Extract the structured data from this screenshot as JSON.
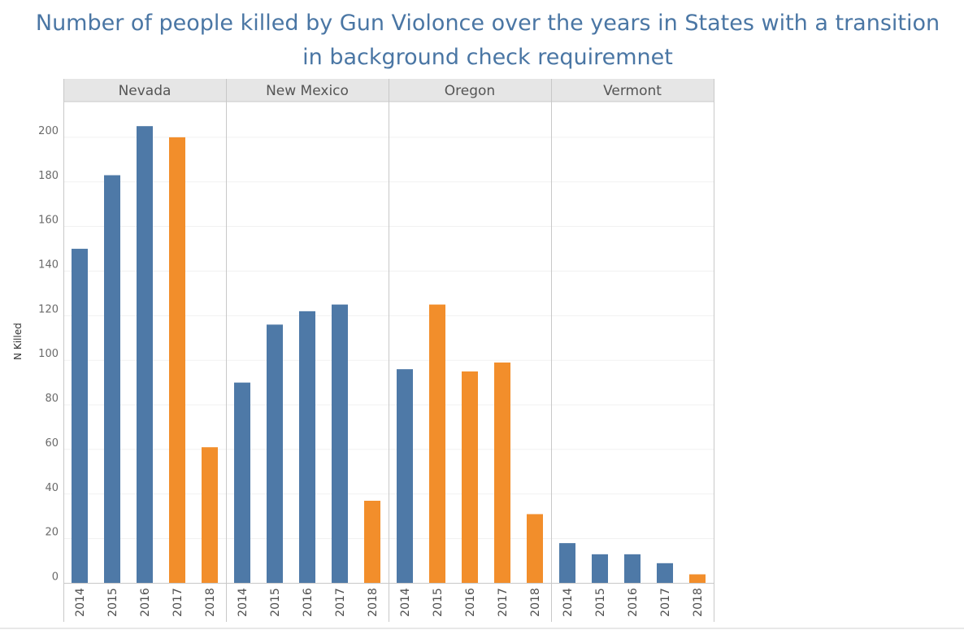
{
  "chart_data": {
    "type": "bar",
    "title": "Number of people killed by Gun Violonce over  the years in States with a transition\nin  background check requiremnet",
    "ylabel": "N Killed",
    "xlabel": "",
    "ylim": [
      0,
      210
    ],
    "yticks": [
      0,
      20,
      40,
      60,
      80,
      100,
      120,
      140,
      160,
      180,
      200
    ],
    "grid": true,
    "legend": "none",
    "colors": {
      "before": "#4e79a7",
      "after": "#f28e2b"
    },
    "panels": [
      {
        "name": "Nevada",
        "categories": [
          "2014",
          "2015",
          "2016",
          "2017",
          "2018"
        ],
        "values": [
          150,
          183,
          205,
          200,
          61
        ],
        "groups": [
          "before",
          "before",
          "before",
          "after",
          "after"
        ]
      },
      {
        "name": "New Mexico",
        "categories": [
          "2014",
          "2015",
          "2016",
          "2017",
          "2018"
        ],
        "values": [
          90,
          116,
          122,
          125,
          37
        ],
        "groups": [
          "before",
          "before",
          "before",
          "before",
          "after"
        ]
      },
      {
        "name": "Oregon",
        "categories": [
          "2014",
          "2015",
          "2016",
          "2017",
          "2018"
        ],
        "values": [
          96,
          125,
          95,
          99,
          31
        ],
        "groups": [
          "before",
          "after",
          "after",
          "after",
          "after"
        ]
      },
      {
        "name": "Vermont",
        "categories": [
          "2014",
          "2015",
          "2016",
          "2017",
          "2018"
        ],
        "values": [
          18,
          13,
          13,
          9,
          4
        ],
        "groups": [
          "before",
          "before",
          "before",
          "before",
          "after"
        ]
      }
    ]
  }
}
